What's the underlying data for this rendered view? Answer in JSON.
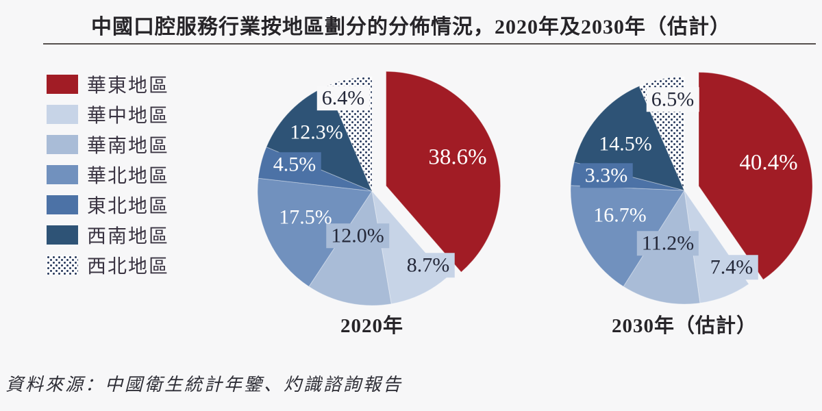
{
  "title": "中國口腔服務行業按地區劃分的分佈情況，2020年及2030年（估計）",
  "source": "資料來源：中國衛生統計年鑒、灼識諮詢報告",
  "legend": {
    "items": [
      {
        "label": "華東地區",
        "color": "#A11C25"
      },
      {
        "label": "華中地區",
        "color": "#C7D4E7"
      },
      {
        "label": "華南地區",
        "color": "#A9BCD7"
      },
      {
        "label": "華北地區",
        "color": "#7191BE"
      },
      {
        "label": "東北地區",
        "color": "#4C72A6"
      },
      {
        "label": "西南地區",
        "color": "#2E5376"
      },
      {
        "label": "西北地區",
        "color": "dots"
      }
    ]
  },
  "chart_data": {
    "type": "pie",
    "categories": [
      "華東地區",
      "華中地區",
      "華南地區",
      "華北地區",
      "東北地區",
      "西南地區",
      "西北地區"
    ],
    "colors": [
      "#A11C25",
      "#C7D4E7",
      "#A9BCD7",
      "#7191BE",
      "#4C72A6",
      "#2E5376",
      "dots"
    ],
    "dot_pattern": {
      "dot_color": "#2B3C5E",
      "background": "#FDFDFE"
    },
    "exploded_category": "華東地區",
    "legend_position": "left",
    "series": [
      {
        "name": "2020年",
        "values": [
          38.6,
          8.7,
          12.0,
          17.5,
          4.5,
          12.3,
          6.4
        ]
      },
      {
        "name": "2030年（估計）",
        "values": [
          40.4,
          7.4,
          11.2,
          16.7,
          3.3,
          14.5,
          6.5
        ]
      }
    ]
  }
}
